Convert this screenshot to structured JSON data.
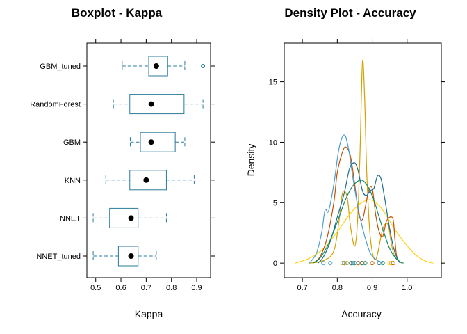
{
  "chart_data": [
    {
      "type": "boxplot",
      "title": "Boxplot - Kappa",
      "xlabel": "Kappa",
      "ylabel": "",
      "xlim": [
        0.465,
        0.955
      ],
      "xticks": [
        0.5,
        0.6,
        0.7,
        0.8,
        0.9
      ],
      "tick_labels": [
        "0.5",
        "0.6",
        "0.7",
        "0.8",
        "0.9"
      ],
      "colors": {
        "box": "#2a7b9b",
        "median": "#000000"
      },
      "categories": [
        "GBM_tuned",
        "RandomForest",
        "GBM",
        "KNN",
        "NNET",
        "NNET_tuned"
      ],
      "series": [
        {
          "name": "GBM_tuned",
          "whisker_low": 0.605,
          "q1": 0.71,
          "median": 0.74,
          "q3": 0.785,
          "whisker_high": 0.853,
          "outliers": [
            0.925
          ]
        },
        {
          "name": "RandomForest",
          "whisker_low": 0.57,
          "q1": 0.635,
          "median": 0.72,
          "q3": 0.85,
          "whisker_high": 0.925,
          "outliers": []
        },
        {
          "name": "GBM",
          "whisker_low": 0.637,
          "q1": 0.677,
          "median": 0.72,
          "q3": 0.815,
          "whisker_high": 0.853,
          "outliers": []
        },
        {
          "name": "KNN",
          "whisker_low": 0.54,
          "q1": 0.635,
          "median": 0.7,
          "q3": 0.78,
          "whisker_high": 0.89,
          "outliers": []
        },
        {
          "name": "NNET",
          "whisker_low": 0.49,
          "q1": 0.555,
          "median": 0.64,
          "q3": 0.668,
          "whisker_high": 0.78,
          "outliers": []
        },
        {
          "name": "NNET_tuned",
          "whisker_low": 0.49,
          "q1": 0.59,
          "median": 0.64,
          "q3": 0.668,
          "whisker_high": 0.74,
          "outliers": []
        }
      ]
    },
    {
      "type": "line",
      "title": "Density Plot - Accuracy",
      "xlabel": "Accuracy",
      "ylabel": "Density",
      "xlim": [
        0.648,
        1.098
      ],
      "ylim": [
        -1.2,
        18.2
      ],
      "xticks": [
        0.7,
        0.8,
        0.9,
        1.0
      ],
      "x_tick_labels": [
        "0.7",
        "0.8",
        "0.9",
        "1.0"
      ],
      "yticks": [
        0,
        5,
        10,
        15
      ],
      "y_tick_labels": [
        "0",
        "5",
        "10",
        "15"
      ],
      "series": [
        {
          "color": "#d4a000",
          "points": [
            [
              0.72,
              0
            ],
            [
              0.76,
              0.2
            ],
            [
              0.79,
              1.0
            ],
            [
              0.805,
              3.5
            ],
            [
              0.815,
              5.8
            ],
            [
              0.828,
              5.5
            ],
            [
              0.838,
              3.0
            ],
            [
              0.85,
              1.4
            ],
            [
              0.858,
              3.5
            ],
            [
              0.865,
              9.0
            ],
            [
              0.872,
              16.6
            ],
            [
              0.878,
              14.0
            ],
            [
              0.885,
              7.0
            ],
            [
              0.895,
              2.0
            ],
            [
              0.91,
              0.3
            ],
            [
              0.93,
              2.8
            ],
            [
              0.945,
              3.2
            ],
            [
              0.955,
              1.6
            ],
            [
              0.965,
              0.5
            ],
            [
              0.985,
              0
            ]
          ],
          "rug": [
            0.815,
            0.828,
            0.86,
            0.872,
            0.955
          ]
        },
        {
          "color": "#ffd21a",
          "points": [
            [
              0.68,
              0
            ],
            [
              0.72,
              0.4
            ],
            [
              0.76,
              1.2
            ],
            [
              0.8,
              2.6
            ],
            [
              0.84,
              4.2
            ],
            [
              0.87,
              5.0
            ],
            [
              0.9,
              5.2
            ],
            [
              0.93,
              4.4
            ],
            [
              0.96,
              3.0
            ],
            [
              0.99,
              1.8
            ],
            [
              1.02,
              0.8
            ],
            [
              1.05,
              0.2
            ],
            [
              1.075,
              0
            ]
          ],
          "rug": [
            0.84,
            0.9,
            0.95
          ]
        },
        {
          "color": "#c24f00",
          "points": [
            [
              0.73,
              0
            ],
            [
              0.75,
              0.5
            ],
            [
              0.77,
              2.0
            ],
            [
              0.79,
              5.0
            ],
            [
              0.8,
              7.5
            ],
            [
              0.815,
              9.2
            ],
            [
              0.825,
              9.6
            ],
            [
              0.838,
              8.8
            ],
            [
              0.85,
              6.5
            ],
            [
              0.862,
              4.0
            ],
            [
              0.872,
              3.6
            ],
            [
              0.88,
              4.6
            ],
            [
              0.89,
              6.0
            ],
            [
              0.9,
              6.2
            ],
            [
              0.91,
              4.0
            ],
            [
              0.92,
              2.6
            ],
            [
              0.93,
              2.2
            ],
            [
              0.94,
              3.4
            ],
            [
              0.95,
              3.8
            ],
            [
              0.96,
              3.6
            ],
            [
              0.965,
              2.0
            ],
            [
              0.97,
              0.6
            ],
            [
              0.98,
              0
            ]
          ],
          "rug": [
            0.82,
            0.86,
            0.9,
            0.96
          ]
        },
        {
          "color": "#4a9ed1",
          "points": [
            [
              0.72,
              0
            ],
            [
              0.74,
              0.8
            ],
            [
              0.755,
              2.5
            ],
            [
              0.765,
              4.4
            ],
            [
              0.775,
              4.3
            ],
            [
              0.79,
              6.5
            ],
            [
              0.805,
              9.5
            ],
            [
              0.82,
              10.6
            ],
            [
              0.832,
              9.5
            ],
            [
              0.845,
              7.0
            ],
            [
              0.86,
              4.5
            ],
            [
              0.875,
              2.6
            ],
            [
              0.885,
              1.6
            ],
            [
              0.895,
              0.8
            ],
            [
              0.91,
              0.3
            ],
            [
              0.93,
              0
            ]
          ],
          "rug": [
            0.76,
            0.78,
            0.82,
            0.845
          ]
        },
        {
          "color": "#1e6b8c",
          "points": [
            [
              0.745,
              0
            ],
            [
              0.76,
              0.5
            ],
            [
              0.78,
              1.8
            ],
            [
              0.8,
              3.8
            ],
            [
              0.82,
              5.8
            ],
            [
              0.835,
              7.8
            ],
            [
              0.85,
              8.3
            ],
            [
              0.86,
              7.6
            ],
            [
              0.872,
              6.0
            ],
            [
              0.883,
              5.6
            ],
            [
              0.895,
              6.0
            ],
            [
              0.905,
              6.2
            ],
            [
              0.915,
              7.2
            ],
            [
              0.925,
              7.0
            ],
            [
              0.935,
              5.5
            ],
            [
              0.948,
              3.2
            ],
            [
              0.96,
              1.4
            ],
            [
              0.97,
              0.5
            ],
            [
              0.98,
              0
            ]
          ],
          "rug": [
            0.84,
            0.87,
            0.92
          ]
        },
        {
          "color": "#0a8a6a",
          "points": [
            [
              0.73,
              0
            ],
            [
              0.75,
              0.4
            ],
            [
              0.775,
              1.6
            ],
            [
              0.8,
              3.4
            ],
            [
              0.82,
              5.0
            ],
            [
              0.84,
              6.2
            ],
            [
              0.86,
              6.8
            ],
            [
              0.875,
              6.8
            ],
            [
              0.89,
              6.2
            ],
            [
              0.905,
              5.2
            ],
            [
              0.92,
              3.8
            ],
            [
              0.935,
              2.4
            ],
            [
              0.95,
              1.2
            ],
            [
              0.965,
              0.5
            ],
            [
              0.98,
              0.1
            ],
            [
              0.99,
              0
            ]
          ],
          "rug": [
            0.85,
            0.88,
            0.93
          ]
        }
      ]
    }
  ]
}
